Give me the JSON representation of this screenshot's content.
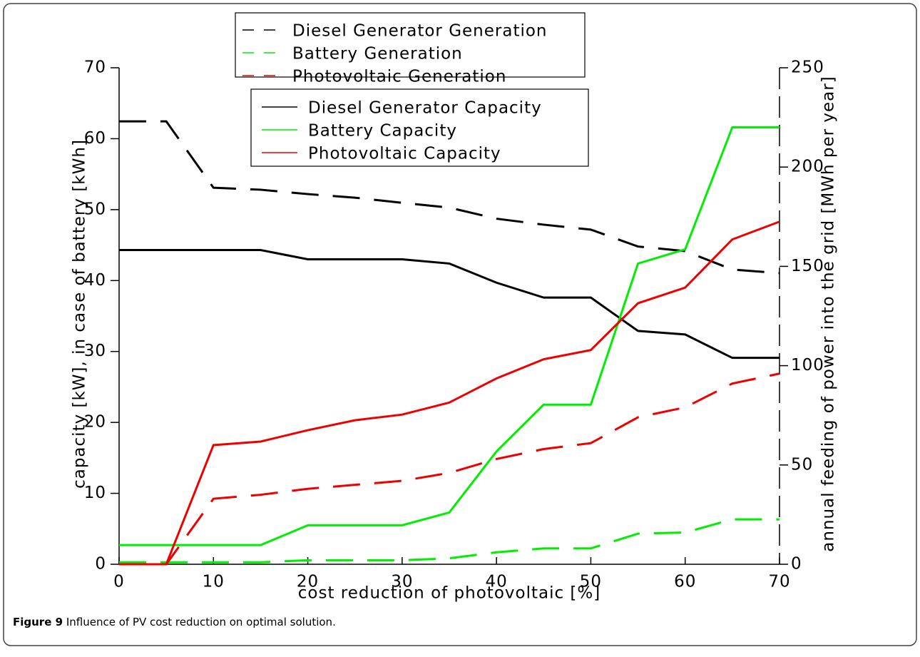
{
  "chart_data": {
    "type": "line",
    "x_label": "cost reduction of photovoltaic [%]",
    "y_label": "capacity [kW], in case of battery [kWh]",
    "y2_label": "annual feeding of power into the grid [MWh per year]",
    "x": [
      0,
      5,
      10,
      15,
      20,
      25,
      30,
      35,
      40,
      45,
      50,
      55,
      60,
      65,
      70
    ],
    "series": [
      {
        "name": "Diesel Generator Generation",
        "color": "#000000",
        "style": "dashed",
        "axis": "y2",
        "values": [
          223,
          223,
          189.6,
          188.6,
          186.4,
          184.6,
          182,
          179.6,
          174,
          171,
          168.5,
          160,
          157.7,
          148.4,
          146.6
        ]
      },
      {
        "name": "Battery Generation",
        "color": "#00ee00",
        "style": "dashed",
        "axis": "y2",
        "values": [
          1,
          1,
          1,
          1,
          2,
          2,
          2,
          3,
          6,
          8,
          8,
          15.4,
          16,
          22.6,
          22.6
        ]
      },
      {
        "name": "Photovoltaic Generation",
        "color": "#ee0000",
        "style": "dashed",
        "axis": "y2",
        "values": [
          0,
          0,
          33,
          35,
          38,
          40,
          42,
          46,
          53,
          58,
          61,
          74,
          79,
          91,
          96
        ]
      },
      {
        "name": "Diesel Generator Capacity",
        "color": "#000000",
        "style": "solid",
        "values": [
          44.3,
          44.3,
          44.3,
          44.3,
          43,
          43,
          43,
          42.4,
          39.7,
          37.6,
          37.6,
          32.9,
          32.4,
          29.1,
          29.1
        ]
      },
      {
        "name": "Battery Capacity",
        "color": "#00ee00",
        "style": "solid",
        "values": [
          2.7,
          2.7,
          2.7,
          2.7,
          5.5,
          5.5,
          5.5,
          7.3,
          15.9,
          22.5,
          22.5,
          42.4,
          44.4,
          61.6,
          61.6
        ]
      },
      {
        "name": "Photovoltaic Capacity",
        "color": "#ee0000",
        "style": "solid",
        "values": [
          0,
          0,
          16.8,
          17.3,
          18.9,
          20.3,
          21.1,
          22.8,
          26.2,
          28.9,
          30.2,
          36.8,
          39,
          45.8,
          48.3
        ]
      }
    ],
    "xlim": [
      0,
      70
    ],
    "xticks": [
      0,
      10,
      20,
      30,
      40,
      50,
      60,
      70
    ],
    "ylim": [
      0,
      70
    ],
    "yticks": [
      0,
      10,
      20,
      30,
      40,
      50,
      60,
      70
    ],
    "y2lim": [
      0,
      250
    ],
    "y2ticks": [
      0,
      50,
      100,
      150,
      200,
      250
    ]
  },
  "caption": {
    "label": "Figure 9",
    "text": "Influence of PV cost reduction on optimal solution."
  }
}
